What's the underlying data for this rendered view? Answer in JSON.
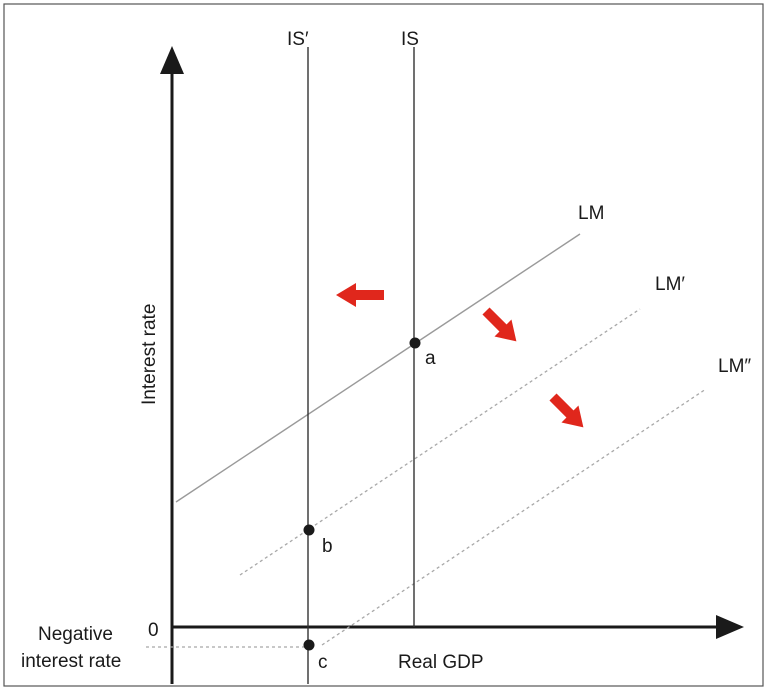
{
  "diagram": {
    "y_axis_label": "Interest rate",
    "x_axis_label": "Real GDP",
    "origin_label": "0",
    "negative_rate_label_line1": "Negative",
    "negative_rate_label_line2": "interest rate",
    "curves": {
      "is_original": "IS",
      "is_shifted": "IS′",
      "lm_original": "LM",
      "lm_shifted_1": "LM′",
      "lm_shifted_2": "LM″"
    },
    "points": {
      "a": "a",
      "b": "b",
      "c": "c"
    },
    "colors": {
      "axis": "#1a1a1a",
      "curve": "#333333",
      "lm_solid": "#9a9a9a",
      "lm_dotted": "#a8a8a8",
      "arrow": "#e0271c",
      "frame": "#555555"
    }
  }
}
